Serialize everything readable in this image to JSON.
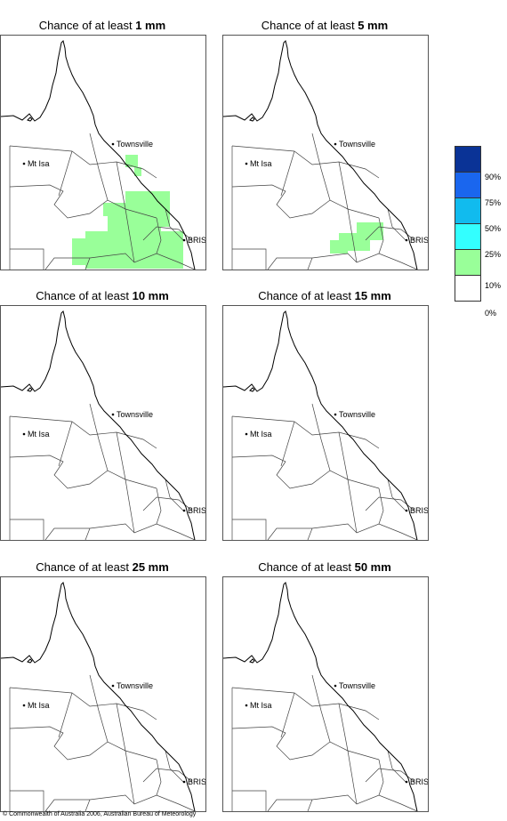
{
  "panels": [
    {
      "prefix": "Chance of at least",
      "amount": "1 mm",
      "labels": {
        "townsville": "Townsville",
        "mtisa": "Mt Isa",
        "bris": "BRIS"
      },
      "probability_shading": "10–25% across south-east and central east Queensland"
    },
    {
      "prefix": "Chance of at least",
      "amount": "5 mm",
      "labels": {
        "townsville": "Townsville",
        "mtisa": "Mt Isa",
        "bris": "BRIS"
      },
      "probability_shading": "10–25% in southern inland Queensland"
    },
    {
      "prefix": "Chance of at least",
      "amount": "10 mm",
      "labels": {
        "townsville": "Townsville",
        "mtisa": "Mt Isa",
        "bris": "BRIS"
      },
      "probability_shading": "none"
    },
    {
      "prefix": "Chance of at least",
      "amount": "15 mm",
      "labels": {
        "townsville": "Townsville",
        "mtisa": "Mt Isa",
        "bris": "BRIS"
      },
      "probability_shading": "none"
    },
    {
      "prefix": "Chance of at least",
      "amount": "25 mm",
      "labels": {
        "townsville": "Townsville",
        "mtisa": "Mt Isa",
        "bris": "BRIS"
      },
      "probability_shading": "none"
    },
    {
      "prefix": "Chance of at least",
      "amount": "50 mm",
      "labels": {
        "townsville": "Townsville",
        "mtisa": "Mt Isa",
        "bris": "BRIS"
      },
      "probability_shading": "none"
    }
  ],
  "legend": {
    "colors": [
      "#0a3396",
      "#1a66ee",
      "#11bbee",
      "#33ffff",
      "#99ff99",
      "#ffffff"
    ],
    "labels": [
      "90%",
      "75%",
      "50%",
      "25%",
      "10%",
      "0%"
    ]
  },
  "copyright": "© Commonwealth of Australia 2006, Australian Bureau of Meteorology"
}
